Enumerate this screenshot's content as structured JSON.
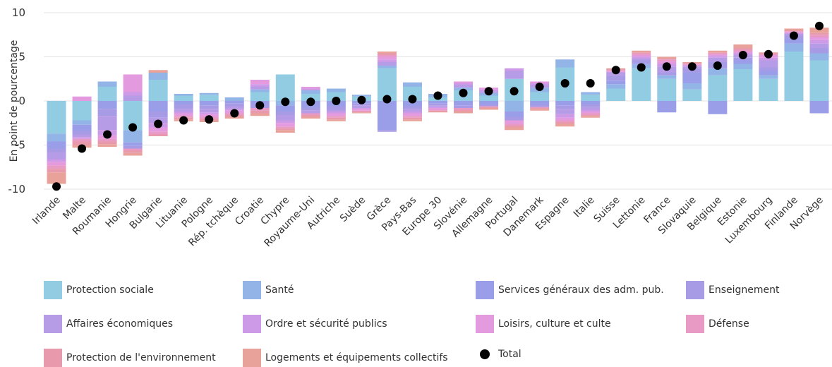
{
  "chart_data": {
    "type": "bar",
    "stacked": true,
    "ylabel": "En point de pourcentage",
    "ylim": [
      -10,
      10
    ],
    "yticks": [
      -10,
      -5,
      0,
      5,
      10
    ],
    "grid": true,
    "legend_position": "bottom",
    "categories": [
      "Irlande",
      "Malte",
      "Roumanie",
      "Hongrie",
      "Bulgarie",
      "Lituanie",
      "Pologne",
      "Rép. tchèque",
      "Croatie",
      "Chypre",
      "Royaume-Uni",
      "Autriche",
      "Suède",
      "Grèce",
      "Pays-Bas",
      "Europe 30",
      "Slovénie",
      "Allemagne",
      "Portugal",
      "Danemark",
      "Espagne",
      "Italie",
      "Suisse",
      "Lettonie",
      "France",
      "Slovaquie",
      "Belgique",
      "Estonie",
      "Luxembourg",
      "Finlande",
      "Norvège"
    ],
    "series": [
      {
        "name": "Protection sociale",
        "color": "#92cce3",
        "values": [
          -3.7,
          -2.2,
          1.6,
          -3.3,
          2.4,
          0.6,
          0.7,
          0.0,
          1.0,
          3.0,
          0.8,
          1.0,
          0.5,
          3.7,
          1.6,
          0.4,
          1.2,
          0.6,
          2.5,
          1.0,
          3.8,
          0.7,
          1.4,
          3.7,
          2.5,
          1.3,
          2.9,
          3.6,
          2.5,
          5.6,
          4.6
        ]
      },
      {
        "name": "Santé",
        "color": "#92b4e6",
        "values": [
          -0.9,
          -0.5,
          0.6,
          -1.4,
          0.8,
          0.2,
          0.2,
          0.4,
          0.3,
          -0.5,
          0.4,
          0.4,
          0.2,
          0.3,
          0.5,
          0.4,
          0.3,
          0.3,
          -1.2,
          0.5,
          0.9,
          0.3,
          0.5,
          0.4,
          0.4,
          0.7,
          0.8,
          0.6,
          0.4,
          0.9,
          0.8
        ]
      },
      {
        "name": "Services généraux des adm. pub.",
        "color": "#9a9ee8",
        "values": [
          -0.8,
          -0.7,
          -0.9,
          -0.4,
          -1.2,
          -0.4,
          -0.5,
          -0.3,
          -0.4,
          -0.7,
          -0.8,
          -0.6,
          -0.3,
          -3.3,
          -0.6,
          -0.3,
          -0.5,
          -0.4,
          -0.6,
          -0.4,
          -0.5,
          -0.4,
          0.4,
          0.2,
          -1.3,
          1.2,
          -1.5,
          0.4,
          0.5,
          0.5,
          -1.4
        ]
      },
      {
        "name": "Enseignement",
        "color": "#a79be6",
        "values": [
          -0.4,
          -0.4,
          -0.8,
          -0.3,
          -0.7,
          -0.5,
          -0.4,
          -0.3,
          -0.4,
          -0.4,
          -0.3,
          -0.4,
          -0.2,
          -0.2,
          -0.3,
          -0.2,
          -0.3,
          -0.2,
          -0.4,
          -0.3,
          -0.4,
          -0.3,
          0.5,
          0.3,
          0.3,
          0.4,
          0.7,
          0.3,
          0.4,
          0.4,
          0.6
        ]
      },
      {
        "name": "Affaires économiques",
        "color": "#b69be6",
        "values": [
          -0.8,
          -0.3,
          -1.6,
          0.6,
          -0.6,
          -0.3,
          -0.4,
          -0.3,
          0.3,
          -0.6,
          -0.3,
          -0.2,
          -0.3,
          0.4,
          -0.3,
          -0.2,
          0.3,
          0.2,
          0.9,
          0.3,
          -0.6,
          -0.3,
          0.4,
          0.2,
          0.7,
          0.3,
          0.5,
          0.3,
          0.8,
          0.2,
          0.5
        ]
      },
      {
        "name": "Ordre et sécurité publics",
        "color": "#cc9ae6",
        "values": [
          -0.3,
          -0.2,
          -0.6,
          0.4,
          -0.5,
          -0.2,
          -0.2,
          -0.2,
          0.3,
          -0.3,
          0.2,
          -0.2,
          -0.1,
          0.3,
          -0.2,
          -0.1,
          0.2,
          0.2,
          0.3,
          0.2,
          -0.4,
          -0.2,
          0.1,
          0.2,
          0.3,
          0.1,
          0.2,
          0.2,
          0.3,
          0.1,
          0.4
        ]
      },
      {
        "name": "Loisirs, culture et culte",
        "color": "#e39adf",
        "values": [
          -0.4,
          0.5,
          -0.4,
          2.0,
          -0.5,
          -0.3,
          -0.3,
          -0.3,
          0.5,
          -0.4,
          0.2,
          -0.3,
          -0.2,
          0.3,
          -0.3,
          -0.2,
          0.2,
          0.2,
          -0.4,
          0.2,
          -0.3,
          -0.2,
          0.1,
          0.2,
          0.3,
          0.1,
          0.2,
          0.2,
          0.3,
          0.1,
          0.3
        ]
      },
      {
        "name": "Défense",
        "color": "#e89ac4",
        "values": [
          -0.4,
          -0.3,
          -0.3,
          -0.2,
          -0.3,
          -0.2,
          -0.2,
          -0.2,
          -0.3,
          -0.2,
          -0.2,
          -0.2,
          -0.1,
          0.2,
          -0.2,
          -0.1,
          -0.2,
          -0.1,
          -0.2,
          -0.1,
          -0.2,
          -0.2,
          0.1,
          0.2,
          0.2,
          0.1,
          0.1,
          0.2,
          0.1,
          0.1,
          0.3
        ]
      },
      {
        "name": "Protection de l'environnement",
        "color": "#e89aac",
        "values": [
          -0.4,
          -0.4,
          -0.3,
          -0.3,
          -0.2,
          -0.2,
          -0.2,
          -0.2,
          -0.3,
          -0.2,
          -0.2,
          -0.2,
          -0.1,
          0.2,
          -0.2,
          -0.1,
          -0.2,
          -0.1,
          -0.2,
          -0.1,
          -0.2,
          -0.1,
          0.1,
          0.1,
          0.1,
          0.1,
          0.1,
          0.2,
          0.1,
          0.1,
          0.2
        ]
      },
      {
        "name": "Logements et équipements collectifs",
        "color": "#e8a29a",
        "values": [
          -1.3,
          -0.3,
          -0.3,
          -0.3,
          0.3,
          -0.2,
          -0.2,
          -0.2,
          -0.3,
          -0.3,
          -0.2,
          -0.2,
          -0.1,
          0.2,
          -0.2,
          -0.1,
          -0.2,
          -0.2,
          -0.3,
          -0.2,
          -0.3,
          -0.2,
          0.1,
          0.2,
          0.2,
          0.1,
          0.2,
          0.4,
          0.1,
          0.2,
          0.6
        ]
      }
    ],
    "total": {
      "name": "Total",
      "color": "#000000",
      "values": [
        -9.7,
        -5.4,
        -3.8,
        -3.0,
        -2.6,
        -2.2,
        -2.1,
        -1.4,
        -0.5,
        -0.1,
        -0.1,
        0.0,
        0.1,
        0.2,
        0.2,
        0.6,
        0.9,
        1.1,
        1.1,
        1.6,
        2.0,
        2.0,
        3.5,
        3.8,
        3.9,
        3.9,
        4.0,
        5.2,
        5.3,
        7.4,
        8.5
      ]
    }
  }
}
